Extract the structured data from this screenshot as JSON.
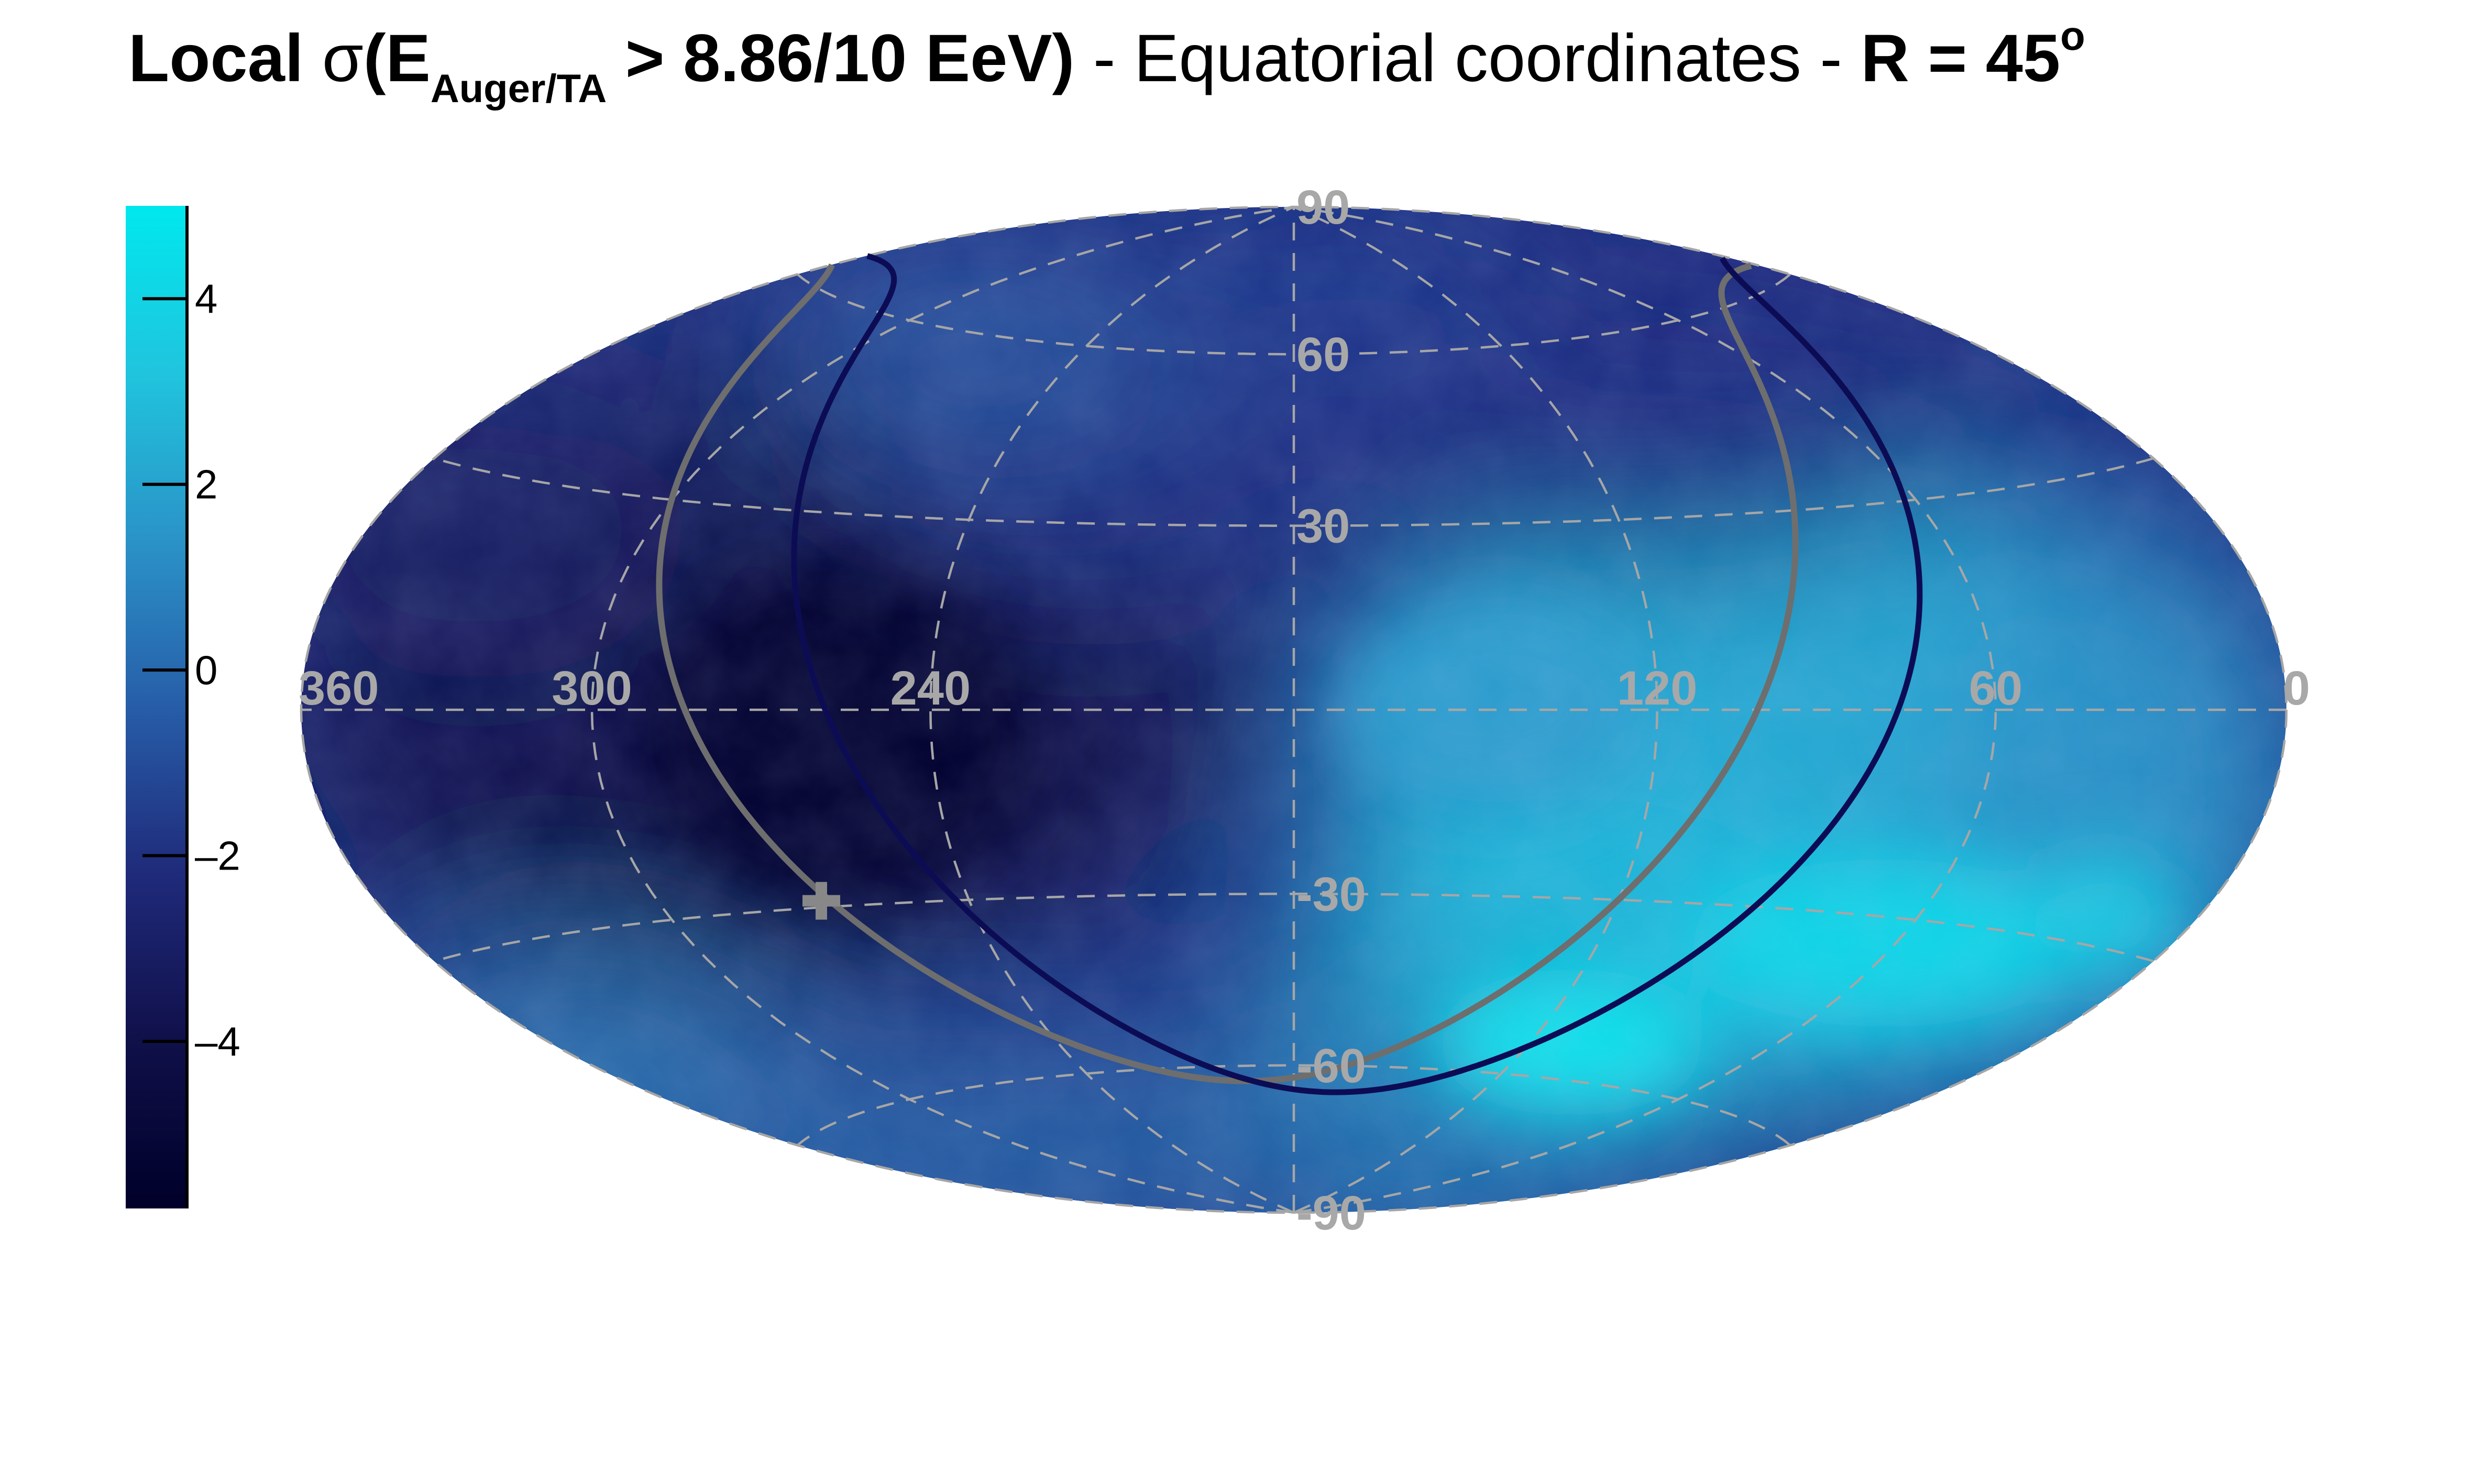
{
  "title": {
    "part1": "Local",
    "sigma": "σ",
    "part2": "(E",
    "subscript": "Auger/TA",
    "part3": " > 8.86/10 EeV)",
    "part4": " - Equatorial coordinates - ",
    "part5": "R = 45",
    "superscript": "o"
  },
  "chart_data": {
    "type": "heatmap",
    "projection": "hammer-aitoff",
    "coordinates": "equatorial",
    "ra_axis": {
      "direction": "right-to-left",
      "tick_labels": [
        "360",
        "300",
        "240",
        "120",
        "60",
        "0"
      ],
      "tick_values": [
        360,
        300,
        240,
        120,
        60,
        0
      ]
    },
    "dec_axis": {
      "tick_labels": [
        "90",
        "60",
        "30",
        "-30",
        "-60",
        "-90"
      ],
      "tick_values": [
        90,
        60,
        30,
        -30,
        -60,
        -90
      ]
    },
    "grid": true,
    "colorbar": {
      "position": "left",
      "range": [
        -5.8,
        5.0
      ],
      "tick_labels": [
        "4",
        "2",
        "0",
        "–2",
        "–4"
      ],
      "tick_values": [
        4,
        2,
        0,
        -2,
        -4
      ],
      "colors": [
        "#00002a",
        "#10104a",
        "#1f2a7a",
        "#275da8",
        "#2a93c8",
        "#20c4dd",
        "#00e8ee"
      ]
    },
    "overlays": [
      {
        "name": "",
        "type": "great-circle",
        "color": "#6e6e6e"
      },
      {
        "name": "",
        "type": "exposure-boundary",
        "color": "#0c0c55"
      }
    ],
    "marker": {
      "ra": 268,
      "dec": -29,
      "symbol": "cross",
      "color": "#888888"
    }
  }
}
